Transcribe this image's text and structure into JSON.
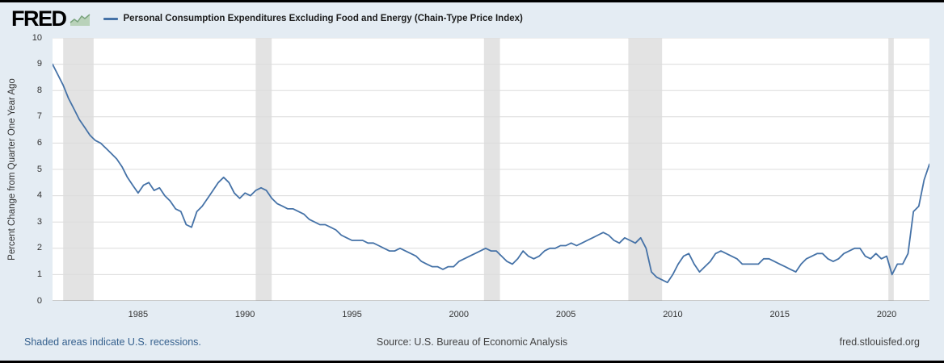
{
  "header": {
    "logo": "FRED",
    "series_title": "Personal Consumption Expenditures Excluding Food and Energy (Chain-Type Price Index)"
  },
  "footer": {
    "recessions_note": "Shaded areas indicate U.S. recessions.",
    "source": "Source: U.S. Bureau of Economic Analysis",
    "site": "fred.stlouisfed.org"
  },
  "chart_data": {
    "type": "line",
    "title": "Personal Consumption Expenditures Excluding Food and Energy (Chain-Type Price Index)",
    "xlabel": "",
    "ylabel": "Percent Change from Quarter One Year Ago",
    "ylim": [
      0,
      10
    ],
    "yticks": [
      0,
      1,
      2,
      3,
      4,
      5,
      6,
      7,
      8,
      9,
      10
    ],
    "xticks": [
      1985,
      1990,
      1995,
      2000,
      2005,
      2010,
      2015,
      2020
    ],
    "x_range": [
      1981.0,
      2022.0
    ],
    "grid": true,
    "legend_position": "top-left",
    "line_color": "#4572a7",
    "recession_color": "#e3e3e3",
    "gridline_color": "#dcdcdc",
    "axis_zero_color": "#999999",
    "recession_bands": [
      [
        1981.5,
        1982.92
      ],
      [
        1990.5,
        1991.25
      ],
      [
        2001.17,
        2001.92
      ],
      [
        2007.92,
        2009.5
      ],
      [
        2020.08,
        2020.33
      ]
    ],
    "series": [
      {
        "name": "Personal Consumption Expenditures Excluding Food and Energy (Chain-Type Price Index)",
        "start_year": 1981.0,
        "period_years": 0.25,
        "values": [
          9.0,
          8.6,
          8.2,
          7.7,
          7.3,
          6.9,
          6.6,
          6.3,
          6.1,
          6.0,
          5.8,
          5.6,
          5.4,
          5.1,
          4.7,
          4.4,
          4.1,
          4.4,
          4.5,
          4.2,
          4.3,
          4.0,
          3.8,
          3.5,
          3.4,
          2.9,
          2.8,
          3.4,
          3.6,
          3.9,
          4.2,
          4.5,
          4.7,
          4.5,
          4.1,
          3.9,
          4.1,
          4.0,
          4.2,
          4.3,
          4.2,
          3.9,
          3.7,
          3.6,
          3.5,
          3.5,
          3.4,
          3.3,
          3.1,
          3.0,
          2.9,
          2.9,
          2.8,
          2.7,
          2.5,
          2.4,
          2.3,
          2.3,
          2.3,
          2.2,
          2.2,
          2.1,
          2.0,
          1.9,
          1.9,
          2.0,
          1.9,
          1.8,
          1.7,
          1.5,
          1.4,
          1.3,
          1.3,
          1.2,
          1.3,
          1.3,
          1.5,
          1.6,
          1.7,
          1.8,
          1.9,
          2.0,
          1.9,
          1.9,
          1.7,
          1.5,
          1.4,
          1.6,
          1.9,
          1.7,
          1.6,
          1.7,
          1.9,
          2.0,
          2.0,
          2.1,
          2.1,
          2.2,
          2.1,
          2.2,
          2.3,
          2.4,
          2.5,
          2.6,
          2.5,
          2.3,
          2.2,
          2.4,
          2.3,
          2.2,
          2.4,
          2.0,
          1.1,
          0.9,
          0.8,
          0.7,
          1.0,
          1.4,
          1.7,
          1.8,
          1.4,
          1.1,
          1.3,
          1.5,
          1.8,
          1.9,
          1.8,
          1.7,
          1.6,
          1.4,
          1.4,
          1.4,
          1.4,
          1.6,
          1.6,
          1.5,
          1.4,
          1.3,
          1.2,
          1.1,
          1.4,
          1.6,
          1.7,
          1.8,
          1.8,
          1.6,
          1.5,
          1.6,
          1.8,
          1.9,
          2.0,
          2.0,
          1.7,
          1.6,
          1.8,
          1.6,
          1.7,
          1.0,
          1.4,
          1.4,
          1.8,
          3.4,
          3.6,
          4.6,
          5.2
        ]
      }
    ]
  }
}
